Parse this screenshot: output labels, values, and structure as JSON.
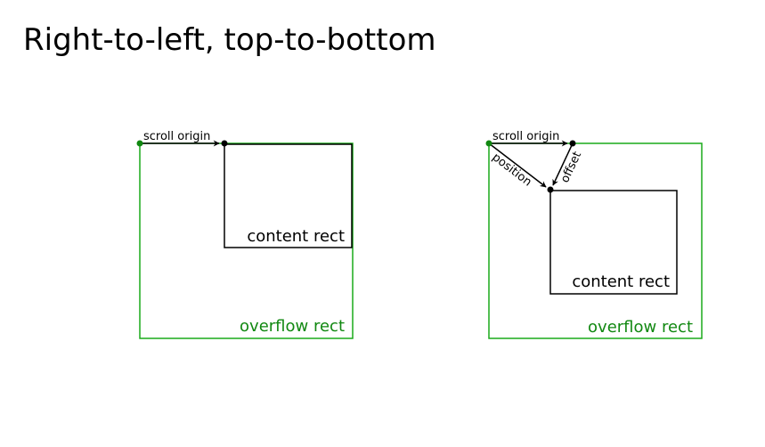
{
  "title": "Right-to-left, top-to-bottom",
  "colors": {
    "overflow": "#1aaa1a",
    "overflow_text": "#118811",
    "origin_dot": "#118811",
    "ink": "#000000",
    "background": "#ffffff"
  },
  "diagrams": [
    {
      "scroll_origin_label": "scroll origin",
      "content_rect_label": "content rect",
      "overflow_rect_label": "overflow rect"
    },
    {
      "scroll_origin_label": "scroll origin",
      "position_label": "position",
      "offset_label": "offset",
      "content_rect_label": "content rect",
      "overflow_rect_label": "overflow rect"
    }
  ]
}
